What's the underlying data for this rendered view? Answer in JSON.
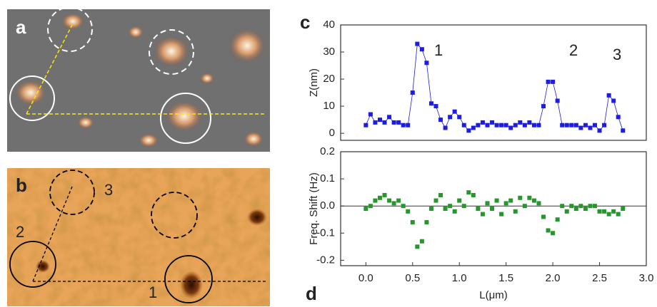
{
  "images": [
    {
      "label": "a",
      "markers": []
    },
    {
      "label": "b",
      "markers": [
        "3",
        "2",
        "1"
      ]
    }
  ],
  "chart_data": [
    {
      "type": "scatter",
      "panel": "c",
      "ylabel": "Z(nm)",
      "x": [
        0,
        0.05,
        0.1,
        0.15,
        0.2,
        0.25,
        0.3,
        0.35,
        0.4,
        0.45,
        0.5,
        0.55,
        0.6,
        0.65,
        0.7,
        0.75,
        0.8,
        0.85,
        0.9,
        0.95,
        1.0,
        1.05,
        1.1,
        1.15,
        1.2,
        1.25,
        1.3,
        1.35,
        1.4,
        1.45,
        1.5,
        1.55,
        1.6,
        1.65,
        1.7,
        1.75,
        1.8,
        1.85,
        1.9,
        1.95,
        2.0,
        2.05,
        2.1,
        2.15,
        2.2,
        2.25,
        2.3,
        2.35,
        2.4,
        2.45,
        2.5,
        2.55,
        2.6,
        2.65,
        2.7,
        2.75
      ],
      "series": [
        {
          "name": null,
          "color": "#1c1ce6",
          "line": true,
          "values": [
            3,
            7,
            4,
            5,
            4,
            6,
            4,
            4,
            3,
            3,
            15,
            33,
            31,
            26,
            11,
            10,
            5,
            2,
            6,
            8,
            6,
            3,
            1,
            2,
            3,
            4,
            3,
            4,
            3,
            3,
            3,
            2,
            3,
            4,
            3,
            4,
            3,
            3,
            10,
            19,
            19,
            12,
            3,
            3,
            3,
            3,
            2,
            3,
            2,
            3,
            1,
            3,
            14,
            12,
            6,
            1
          ]
        }
      ],
      "xlim": [
        -0.27,
        3.0
      ],
      "ylim": [
        -2.6,
        40
      ],
      "yticks": [
        0,
        10,
        20,
        30,
        40
      ],
      "annotations": [
        "1",
        "2",
        "3"
      ]
    },
    {
      "type": "scatter",
      "panel": "d",
      "ylabel": "Freq. Shift  (Hz)",
      "xlabel": "L(μm)",
      "x": [
        0,
        0.05,
        0.1,
        0.15,
        0.2,
        0.25,
        0.3,
        0.35,
        0.4,
        0.45,
        0.5,
        0.55,
        0.6,
        0.65,
        0.7,
        0.75,
        0.8,
        0.85,
        0.9,
        0.95,
        1.0,
        1.05,
        1.1,
        1.15,
        1.2,
        1.25,
        1.3,
        1.35,
        1.4,
        1.45,
        1.5,
        1.55,
        1.6,
        1.65,
        1.7,
        1.75,
        1.8,
        1.85,
        1.9,
        1.95,
        2.0,
        2.05,
        2.1,
        2.15,
        2.2,
        2.25,
        2.3,
        2.35,
        2.4,
        2.45,
        2.5,
        2.55,
        2.6,
        2.65,
        2.7,
        2.75
      ],
      "series": [
        {
          "name": null,
          "color": "#26972b",
          "line": false,
          "values": [
            -0.01,
            0,
            0.02,
            0.03,
            0.04,
            0.02,
            0.01,
            0.02,
            0.0,
            -0.02,
            -0.06,
            -0.15,
            -0.13,
            -0.06,
            -0.01,
            0.02,
            0.04,
            -0.01,
            0.0,
            -0.02,
            0.02,
            0.0,
            0.05,
            0.04,
            -0.01,
            -0.03,
            0.01,
            -0.01,
            0.02,
            -0.03,
            0.01,
            0.02,
            -0.02,
            0.03,
            0.0,
            0.03,
            0.02,
            0.01,
            -0.04,
            -0.09,
            -0.1,
            -0.05,
            0.0,
            -0.02,
            0.0,
            -0.01,
            0.0,
            -0.01,
            0.0,
            0.0,
            -0.02,
            -0.02,
            -0.03,
            -0.02,
            -0.03,
            -0.01
          ]
        }
      ],
      "xlim": [
        -0.27,
        3.0
      ],
      "xticks": [
        {
          "value": 0,
          "label": "0.0"
        },
        0.5,
        {
          "value": 1,
          "label": "1.0"
        },
        1.5,
        {
          "value": 2,
          "label": "2.0"
        },
        2.5,
        {
          "value": 3,
          "label": "3.0"
        }
      ],
      "ylim": [
        -0.22,
        0.2
      ],
      "yticks": [
        -0.2,
        -0.1,
        {
          "value": 0,
          "label": "0.0"
        },
        0.1,
        0.2
      ],
      "zero_line": true
    }
  ]
}
